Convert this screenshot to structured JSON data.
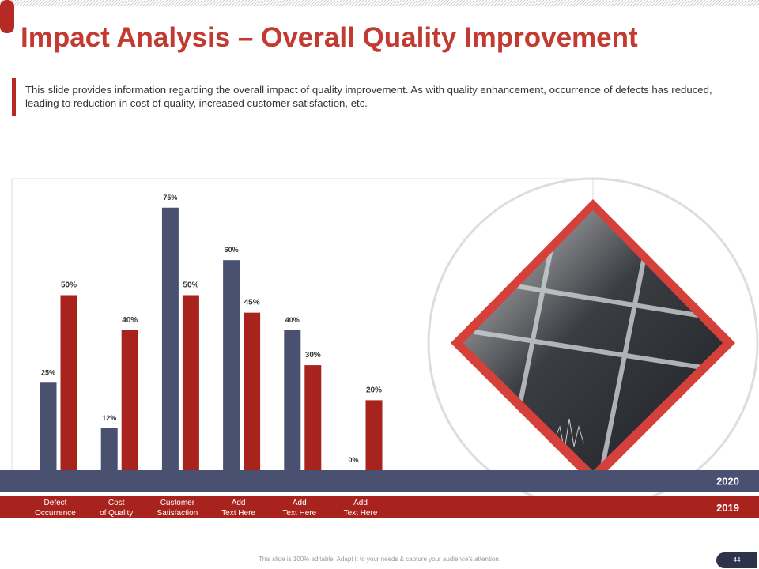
{
  "title": "Impact Analysis – Overall Quality Improvement",
  "description": "This slide provides information regarding the overall impact of quality improvement. As with quality enhancement, occurrence of defects has reduced, leading to reduction in cost of quality,  increased customer satisfaction, etc.",
  "footer": "This slide is 100% editable. Adapt it to your needs & capture your audience's attention.",
  "page_number": "44",
  "chart_data": {
    "type": "bar",
    "categories": [
      "Defect\nOccurrence",
      "Cost\nof Quality",
      "Customer\nSatisfaction",
      "Add\nText Here",
      "Add\nText Here",
      "Add\nText Here"
    ],
    "series": [
      {
        "name": "2020",
        "color": "#4a5070",
        "values": [
          25,
          12,
          75,
          60,
          40,
          0
        ],
        "value_labels": [
          "25%",
          "12%",
          "75%",
          "60%",
          "40%",
          "0%"
        ]
      },
      {
        "name": "2019",
        "color": "#a8221e",
        "values": [
          50,
          40,
          50,
          45,
          30,
          20
        ],
        "value_labels": [
          "50%",
          "40%",
          "50%",
          "45%",
          "30%",
          "20%"
        ]
      }
    ],
    "ylim": [
      0,
      100
    ]
  }
}
